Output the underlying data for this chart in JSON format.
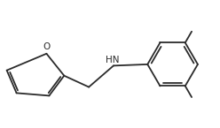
{
  "bg_color": "#ffffff",
  "line_color": "#2b2b2b",
  "line_width": 1.3,
  "text_color": "#2b2b2b",
  "font_size": 7.5,
  "label_O": "O",
  "label_HN": "HN",
  "figsize": [
    2.48,
    1.45
  ],
  "dpi": 100,
  "xlim": [
    0.2,
    5.6
  ],
  "ylim": [
    -1.3,
    1.1
  ]
}
